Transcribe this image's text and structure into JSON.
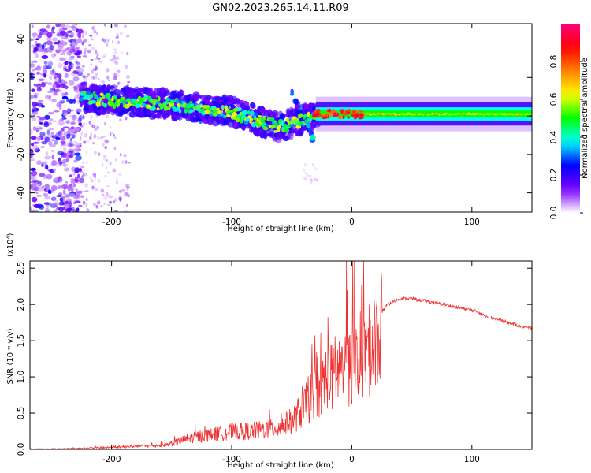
{
  "figure_title": "GN02.2023.265.14.11.R09",
  "chart_data": [
    {
      "id": "spectrogram",
      "type": "heatmap",
      "title": "",
      "xlabel": "Height of straight line (km)",
      "ylabel": "Frequency (Hz)",
      "xlim": [
        -268,
        150
      ],
      "ylim": [
        -50,
        48
      ],
      "xticks": [
        -200,
        -100,
        0,
        100
      ],
      "yticks": [
        -40,
        -20,
        0,
        20,
        40
      ],
      "ytick_labels": [
        "-40",
        "-20",
        "0",
        "20",
        "40"
      ],
      "colorbar": {
        "label": "Normalized spectral amplitude",
        "range": [
          0,
          1
        ],
        "ticks": [
          0.0,
          0.2,
          0.4,
          0.6,
          0.8
        ],
        "tick_labels": [
          "0.0",
          "0.2",
          "0.4",
          "0.6",
          "0.8"
        ],
        "colormap": [
          "#ffffff",
          "#7c00ff",
          "#0000ff",
          "#00ffff",
          "#00ff00",
          "#ffff00",
          "#ff8000",
          "#ff0000",
          "#ff0080"
        ]
      },
      "features": {
        "noise_region_x": [
          -268,
          -225
        ],
        "scattered_band_x": [
          -225,
          -185
        ],
        "track": [
          {
            "x": -225,
            "y": 10
          },
          {
            "x": -200,
            "y": 8
          },
          {
            "x": -175,
            "y": 7
          },
          {
            "x": -150,
            "y": 6
          },
          {
            "x": -125,
            "y": 4
          },
          {
            "x": -100,
            "y": 2
          },
          {
            "x": -80,
            "y": -2
          },
          {
            "x": -60,
            "y": -6
          },
          {
            "x": -45,
            "y": -3
          },
          {
            "x": -35,
            "y": 0
          },
          {
            "x": -20,
            "y": 1
          },
          {
            "x": 0,
            "y": 1
          },
          {
            "x": 50,
            "y": 1
          },
          {
            "x": 100,
            "y": 1
          },
          {
            "x": 150,
            "y": 1
          }
        ]
      }
    },
    {
      "id": "snr",
      "type": "line",
      "title": "",
      "xlabel": "Height of straight line (km)",
      "ylabel": "SNR (10 * v/v)",
      "scale_label": "(x10⁴)",
      "xlim": [
        -268,
        150
      ],
      "ylim": [
        0,
        2.6
      ],
      "xticks": [
        -200,
        -100,
        0,
        100
      ],
      "yticks": [
        0.0,
        0.5,
        1.0,
        1.5,
        2.0,
        2.5
      ],
      "ytick_labels": [
        "0.0",
        "0.5",
        "1.0",
        "1.5",
        "2.0",
        "2.5"
      ],
      "color": "#ee3333",
      "series": [
        {
          "x": [
            -268,
            -240,
            -220,
            -200,
            -180,
            -160,
            -150,
            -140,
            -130,
            -120,
            -110,
            -100,
            -90,
            -80,
            -70,
            -60,
            -50,
            -45,
            -40,
            -35,
            -30,
            -25,
            -20,
            -15,
            -10,
            -5,
            0,
            5,
            10,
            15,
            20,
            25,
            30,
            40,
            50,
            60,
            70,
            80,
            90,
            100,
            105,
            110,
            120,
            130,
            140,
            150
          ],
          "y": [
            0.0,
            0.01,
            0.02,
            0.03,
            0.05,
            0.06,
            0.09,
            0.15,
            0.2,
            0.22,
            0.25,
            0.28,
            0.28,
            0.3,
            0.32,
            0.35,
            0.45,
            0.55,
            0.65,
            0.8,
            0.95,
            1.0,
            1.2,
            1.1,
            1.3,
            1.2,
            1.35,
            1.45,
            1.5,
            1.55,
            1.75,
            1.9,
            2.0,
            2.08,
            2.08,
            2.05,
            2.02,
            1.99,
            1.95,
            1.92,
            1.9,
            1.85,
            1.8,
            1.75,
            1.7,
            1.67
          ]
        }
      ]
    }
  ]
}
